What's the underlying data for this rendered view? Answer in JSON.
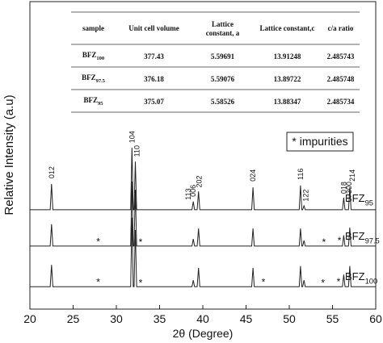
{
  "chart_data": {
    "type": "line",
    "x_label": "2θ (Degree)",
    "y_label": "Relative Intensity (a.u)",
    "xlim": [
      20,
      60
    ],
    "xticks": [
      20,
      25,
      30,
      35,
      40,
      45,
      50,
      55,
      60
    ],
    "ylim": [
      0,
      100
    ],
    "series": [
      {
        "name": "BFZ95",
        "color": "#222222",
        "x": [
          20,
          22.35,
          22.5,
          22.65,
          31.65,
          31.8,
          31.95,
          32.05,
          32.2,
          32.35,
          38.75,
          38.9,
          39.05,
          39.35,
          39.5,
          39.65,
          45.65,
          45.8,
          45.95,
          51.15,
          51.3,
          51.45,
          51.55,
          51.7,
          51.85,
          56.15,
          56.3,
          56.45,
          56.85,
          57.0,
          57.15,
          60
        ],
        "values": [
          32.3,
          32.3,
          40.7,
          32.3,
          32.3,
          52.5,
          32.3,
          32.3,
          48,
          32.3,
          32.3,
          35,
          32.3,
          32.3,
          38.3,
          32.3,
          32.3,
          39.6,
          32.3,
          32.3,
          40.2,
          32.3,
          32.3,
          33.6,
          32.3,
          32.3,
          36.2,
          32.3,
          32.3,
          39.6,
          32.3,
          32.3
        ]
      },
      {
        "name": "BFZ97.5",
        "color": "#222222",
        "x": [
          20,
          22.35,
          22.5,
          22.65,
          31.65,
          31.8,
          31.95,
          32.05,
          32.2,
          32.35,
          38.75,
          38.9,
          39.05,
          39.35,
          39.5,
          39.65,
          45.65,
          45.8,
          45.95,
          51.15,
          51.3,
          51.45,
          51.55,
          51.7,
          51.85,
          56.15,
          56.3,
          56.45,
          56.85,
          57.0,
          57.15,
          60
        ],
        "values": [
          20.5,
          20.5,
          27.6,
          20.5,
          20.5,
          41.5,
          20.5,
          20.5,
          38.8,
          20.5,
          20.5,
          22.8,
          20.5,
          20.5,
          26.2,
          20.5,
          20.5,
          26.2,
          20.5,
          20.5,
          26.2,
          20.5,
          20.5,
          22.3,
          20.5,
          20.5,
          24,
          20.5,
          20.5,
          26.5,
          20.5,
          20.5
        ]
      },
      {
        "name": "BFZ100",
        "color": "#222222",
        "x": [
          20,
          22.35,
          22.5,
          22.65,
          31.65,
          31.8,
          31.95,
          32.05,
          32.2,
          32.35,
          38.75,
          38.9,
          39.05,
          39.35,
          39.5,
          39.65,
          45.65,
          45.8,
          45.95,
          51.15,
          51.3,
          51.45,
          51.55,
          51.7,
          51.85,
          56.15,
          56.3,
          56.45,
          56.85,
          57.0,
          57.15,
          60
        ],
        "values": [
          7.3,
          7.3,
          14.4,
          7.3,
          7.3,
          29.7,
          7.3,
          7.3,
          25.7,
          7.3,
          7.3,
          9.4,
          7.3,
          7.3,
          13.4,
          7.3,
          7.3,
          13.4,
          7.3,
          7.3,
          14,
          7.3,
          7.3,
          9.4,
          7.3,
          7.3,
          11.2,
          7.3,
          7.3,
          14,
          7.3,
          7.3
        ]
      }
    ],
    "peak_labels": [
      {
        "text": "012",
        "x": 22.5,
        "y": 42.5
      },
      {
        "text": "104",
        "x": 31.8,
        "y": 54
      },
      {
        "text": "110",
        "x": 32.4,
        "y": 49.5
      },
      {
        "text": "113",
        "x": 38.3,
        "y": 35.5
      },
      {
        "text": "006",
        "x": 38.9,
        "y": 36.5
      },
      {
        "text": "202",
        "x": 39.6,
        "y": 39.5
      },
      {
        "text": "024",
        "x": 45.8,
        "y": 41.5
      },
      {
        "text": "116",
        "x": 51.3,
        "y": 42
      },
      {
        "text": "122",
        "x": 51.9,
        "y": 35
      },
      {
        "text": "018",
        "x": 56.3,
        "y": 37.5
      },
      {
        "text": "300",
        "x": 56.9,
        "y": 37.5
      },
      {
        "text": "214",
        "x": 57.3,
        "y": 41.5
      }
    ],
    "impurity_marks": [
      {
        "text": "*",
        "x": 27.9,
        "y": 22.5
      },
      {
        "text": "*",
        "x": 32.8,
        "y": 22.3
      },
      {
        "text": "*",
        "x": 54,
        "y": 22.3
      },
      {
        "text": "*",
        "x": 55.8,
        "y": 22.8
      },
      {
        "text": "*",
        "x": 27.9,
        "y": 9.3
      },
      {
        "text": "*",
        "x": 32.8,
        "y": 9
      },
      {
        "text": "*",
        "x": 47,
        "y": 9.3
      },
      {
        "text": "*",
        "x": 53.9,
        "y": 9
      },
      {
        "text": "*",
        "x": 55.7,
        "y": 9.5
      }
    ],
    "legend_note": "* impurities",
    "table": {
      "header": [
        "sample",
        "Unit cell volume",
        "Lattice constant, a",
        "Lattice constant,c",
        "c/a ratio"
      ],
      "rows": [
        [
          "BFZ100",
          "377.43",
          "5.59691",
          "13.91248",
          "2.485743"
        ],
        [
          "BFZ97.5",
          "376.18",
          "5.59076",
          "13.89722",
          "2.485748"
        ],
        [
          "BFZ95",
          "375.07",
          "5.58526",
          "13.88347",
          "2.485734"
        ]
      ]
    }
  }
}
